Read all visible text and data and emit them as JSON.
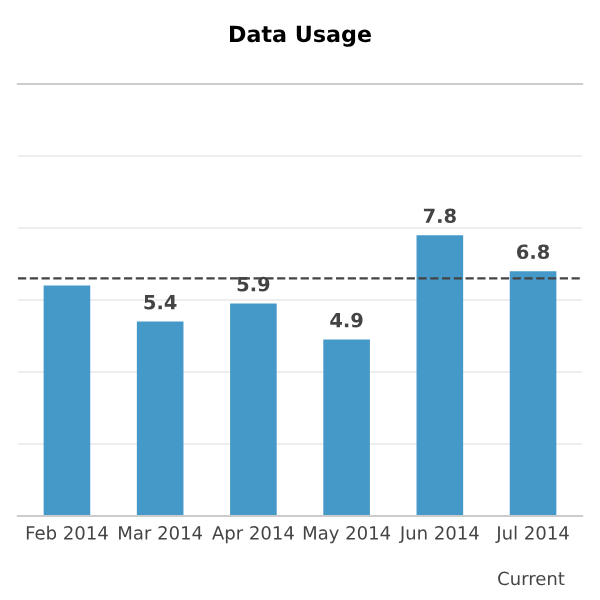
{
  "chart_data": {
    "type": "bar",
    "title": "Data Usage",
    "categories": [
      "Feb 2014",
      "Mar 2014",
      "Apr 2014",
      "May 2014",
      "Jun 2014",
      "Jul 2014"
    ],
    "values": [
      6.4,
      5.4,
      5.9,
      4.9,
      7.8,
      6.8
    ],
    "value_labels": [
      null,
      "5.4",
      "5.9",
      "4.9",
      "7.8",
      "6.8"
    ],
    "color": "#4599c8",
    "ylim": [
      0,
      12
    ],
    "yticks": [
      {
        "value": 0,
        "label": null
      },
      {
        "value": 2,
        "label": null
      },
      {
        "value": 4,
        "label": null
      },
      {
        "value": 6,
        "label": null
      },
      {
        "value": 8,
        "label": null
      },
      {
        "value": 10,
        "label": null
      },
      {
        "value": 12,
        "label": null
      }
    ],
    "tick_labels": "x",
    "grid": "y",
    "ref_lines": [
      {
        "axis": "y",
        "value": 6.6,
        "color": "#444444",
        "line_style": "dashed"
      }
    ],
    "annotations": [
      "Current"
    ]
  }
}
